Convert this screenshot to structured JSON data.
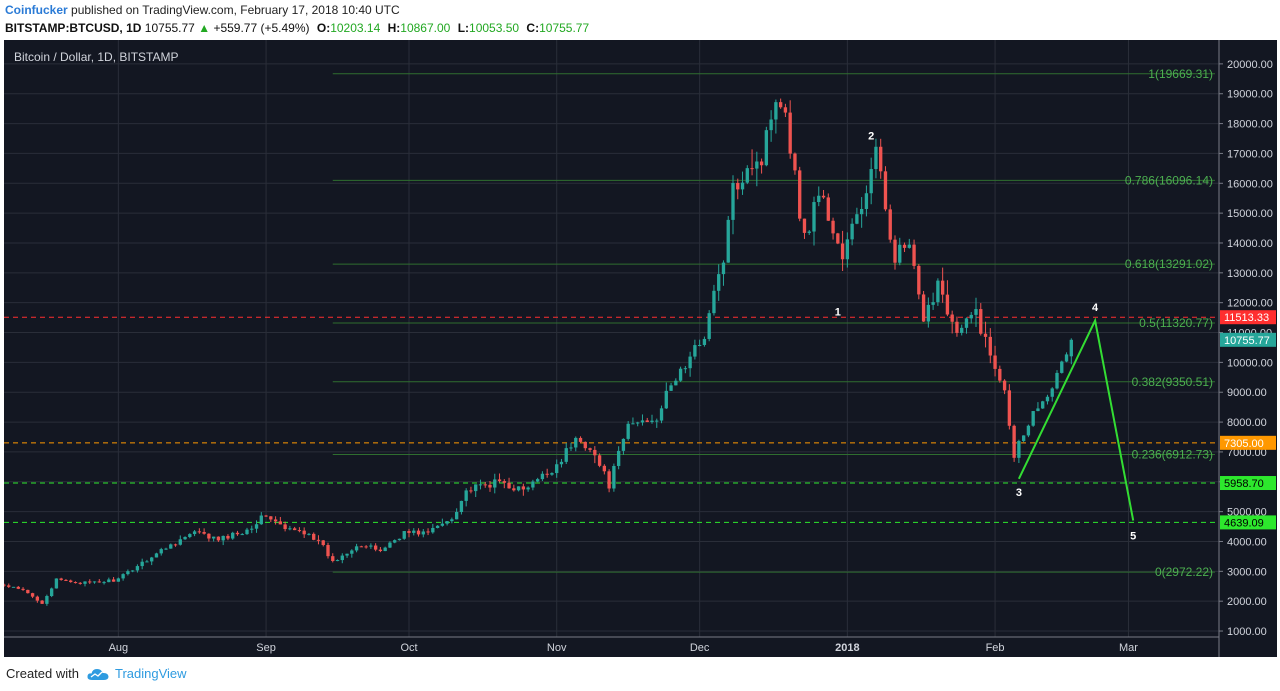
{
  "header": {
    "author": "Coinfucker",
    "published": "published on TradingView.com, February 17, 2018 10:40 UTC",
    "symbol": "BITSTAMP:BTCUSD, 1D",
    "price": "10755.77",
    "change": "+559.77 (+5.49%)",
    "o_label": "O:",
    "o_value": "10203.14",
    "h_label": "H:",
    "h_value": "10867.00",
    "l_label": "L:",
    "l_value": "10053.50",
    "c_label": "C:",
    "c_value": "10755.77"
  },
  "footer": {
    "created_with": "Created with",
    "brand": "TradingView"
  },
  "colors": {
    "background": "#131722",
    "grid": "#2a2e39",
    "up": "#26a69a",
    "down": "#ef5350",
    "fib": "#2f6e2f",
    "fib_text": "#4caf50",
    "wave": "#33dd33",
    "resistance": "#ff2f2f",
    "orange": "#ff9800",
    "support": "#2de82d",
    "last_price": "#26a69a"
  },
  "chart_data": {
    "type": "candlestick",
    "title": "Bitcoin / Dollar, 1D, BITSTAMP",
    "ylim": [
      800,
      20800
    ],
    "y_ticks": [
      1000,
      2000,
      3000,
      4000,
      5000,
      6000,
      7000,
      8000,
      9000,
      10000,
      11000,
      12000,
      13000,
      14000,
      15000,
      16000,
      17000,
      18000,
      19000,
      20000
    ],
    "x_ticks": [
      {
        "label": "Aug",
        "date": "2017-08-01",
        "bold": false
      },
      {
        "label": "Sep",
        "date": "2017-09-01",
        "bold": false
      },
      {
        "label": "Oct",
        "date": "2017-10-01",
        "bold": false
      },
      {
        "label": "Nov",
        "date": "2017-11-01",
        "bold": false
      },
      {
        "label": "Dec",
        "date": "2017-12-01",
        "bold": false
      },
      {
        "label": "2018",
        "date": "2018-01-01",
        "bold": true
      },
      {
        "label": "Feb",
        "date": "2018-02-01",
        "bold": false
      },
      {
        "label": "Mar",
        "date": "2018-03-01",
        "bold": false
      }
    ],
    "x_range": [
      "2017-07-08",
      "2018-03-20"
    ],
    "trend": [
      [
        "2017-07-08",
        2520
      ],
      [
        "2017-07-12",
        2350
      ],
      [
        "2017-07-16",
        1950
      ],
      [
        "2017-07-19",
        2700
      ],
      [
        "2017-07-26",
        2600
      ],
      [
        "2017-08-01",
        2730
      ],
      [
        "2017-08-05",
        3200
      ],
      [
        "2017-08-12",
        3900
      ],
      [
        "2017-08-17",
        4300
      ],
      [
        "2017-08-22",
        4050
      ],
      [
        "2017-08-28",
        4400
      ],
      [
        "2017-09-01",
        4900
      ],
      [
        "2017-09-05",
        4400
      ],
      [
        "2017-09-10",
        4300
      ],
      [
        "2017-09-13",
        3800
      ],
      [
        "2017-09-15",
        3300
      ],
      [
        "2017-09-20",
        3900
      ],
      [
        "2017-09-25",
        3700
      ],
      [
        "2017-09-30",
        4300
      ],
      [
        "2017-10-05",
        4300
      ],
      [
        "2017-10-10",
        4800
      ],
      [
        "2017-10-13",
        5700
      ],
      [
        "2017-10-20",
        6000
      ],
      [
        "2017-10-25",
        5700
      ],
      [
        "2017-10-31",
        6400
      ],
      [
        "2017-11-05",
        7400
      ],
      [
        "2017-11-08",
        7200
      ],
      [
        "2017-11-12",
        5900
      ],
      [
        "2017-11-16",
        7900
      ],
      [
        "2017-11-22",
        8200
      ],
      [
        "2017-11-26",
        9500
      ],
      [
        "2017-11-29",
        10100
      ],
      [
        "2017-12-02",
        11000
      ],
      [
        "2017-12-06",
        13500
      ],
      [
        "2017-12-08",
        15700
      ],
      [
        "2017-12-11",
        16700
      ],
      [
        "2017-12-14",
        16800
      ],
      [
        "2017-12-17",
        19100
      ],
      [
        "2017-12-19",
        18500
      ],
      [
        "2017-12-21",
        16200
      ],
      [
        "2017-12-23",
        14100
      ],
      [
        "2017-12-26",
        15800
      ],
      [
        "2017-12-29",
        14400
      ],
      [
        "2017-12-31",
        13500
      ],
      [
        "2018-01-02",
        14500
      ],
      [
        "2018-01-04",
        15200
      ],
      [
        "2018-01-07",
        17000
      ],
      [
        "2018-01-09",
        15200
      ],
      [
        "2018-01-11",
        13600
      ],
      [
        "2018-01-14",
        13900
      ],
      [
        "2018-01-17",
        11200
      ],
      [
        "2018-01-20",
        12800
      ],
      [
        "2018-01-24",
        10900
      ],
      [
        "2018-01-28",
        11700
      ],
      [
        "2018-01-31",
        10200
      ],
      [
        "2018-02-03",
        9200
      ],
      [
        "2018-02-05",
        6900
      ],
      [
        "2018-02-07",
        7700
      ],
      [
        "2018-02-10",
        8600
      ],
      [
        "2018-02-14",
        9500
      ],
      [
        "2018-02-17",
        10755
      ]
    ],
    "fib_levels": [
      {
        "label": "1(19669.31)",
        "value": 19669.31
      },
      {
        "label": "0.786(16096.14)",
        "value": 16096.14
      },
      {
        "label": "0.618(13291.02)",
        "value": 13291.02
      },
      {
        "label": "0.5(11320.77)",
        "value": 11320.77
      },
      {
        "label": "0.382(9350.51)",
        "value": 9350.51
      },
      {
        "label": "0.236(6912.73)",
        "value": 6912.73
      },
      {
        "label": "0(2972.22)",
        "value": 2972.22
      }
    ],
    "fib_start_date": "2017-09-15",
    "horizontal_lines": [
      {
        "value": 11513.33,
        "label": "11513.33",
        "color": "#ff2f2f",
        "text_color": "#ffffff"
      },
      {
        "value": 7305.0,
        "label": "7305.00",
        "color": "#ff9800",
        "text_color": "#ffffff"
      },
      {
        "value": 5958.7,
        "label": "5958.70",
        "color": "#2de82d",
        "text_color": "#000000"
      },
      {
        "value": 4639.09,
        "label": "4639.09",
        "color": "#2de82d",
        "text_color": "#000000"
      }
    ],
    "last_price": {
      "value": 10755.77,
      "label": "10755.77"
    },
    "wave_points": [
      {
        "label": "3",
        "date": "2018-02-06",
        "value": 6100
      },
      {
        "label": "4",
        "date": "2018-02-22",
        "value": 11400
      },
      {
        "label": "5",
        "date": "2018-03-02",
        "value": 4700
      }
    ],
    "wave_labels": [
      {
        "label": "1",
        "date": "2017-12-30",
        "value": 11700
      },
      {
        "label": "2",
        "date": "2018-01-06",
        "value": 17600
      },
      {
        "label": "3",
        "date": "2018-02-06",
        "value": 5650
      },
      {
        "label": "4",
        "date": "2018-02-22",
        "value": 11850
      },
      {
        "label": "5",
        "date": "2018-03-02",
        "value": 4200
      }
    ]
  }
}
